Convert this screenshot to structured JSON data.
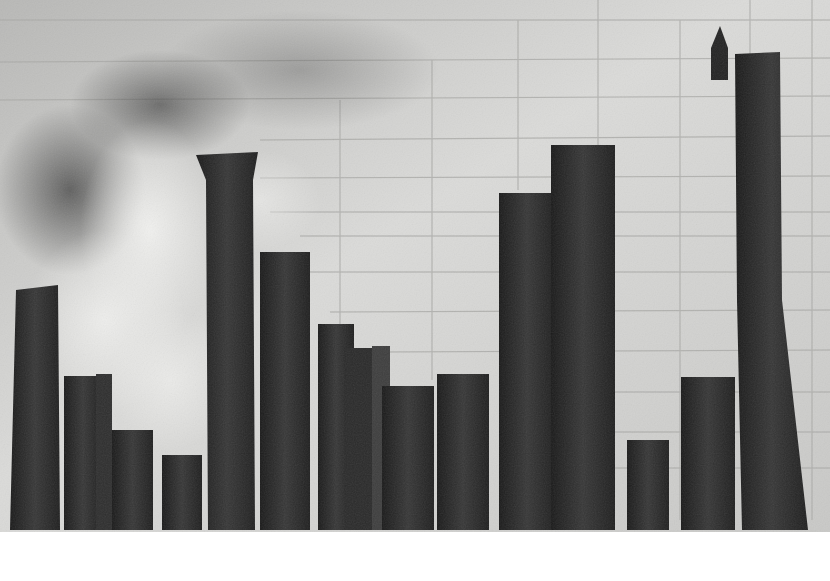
{
  "image": {
    "kind": "photograph",
    "palette": {
      "wall": "#cfcfcc",
      "grid_line": "#a9a9a6",
      "column_dark": "#1c1c1c",
      "column_mid": "#2e2e2e",
      "smoke_light": "#e6e6e3",
      "smoke_dark": "#3a3a3a",
      "border": "#ffffff"
    }
  }
}
